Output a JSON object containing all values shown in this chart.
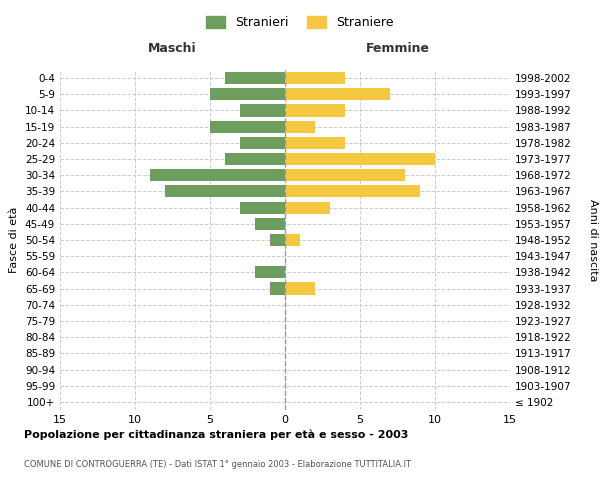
{
  "age_groups": [
    "100+",
    "95-99",
    "90-94",
    "85-89",
    "80-84",
    "75-79",
    "70-74",
    "65-69",
    "60-64",
    "55-59",
    "50-54",
    "45-49",
    "40-44",
    "35-39",
    "30-34",
    "25-29",
    "20-24",
    "15-19",
    "10-14",
    "5-9",
    "0-4"
  ],
  "birth_years": [
    "≤ 1902",
    "1903-1907",
    "1908-1912",
    "1913-1917",
    "1918-1922",
    "1923-1927",
    "1928-1932",
    "1933-1937",
    "1938-1942",
    "1943-1947",
    "1948-1952",
    "1953-1957",
    "1958-1962",
    "1963-1967",
    "1968-1972",
    "1973-1977",
    "1978-1982",
    "1983-1987",
    "1988-1992",
    "1993-1997",
    "1998-2002"
  ],
  "males": [
    0,
    0,
    0,
    0,
    0,
    0,
    0,
    1,
    2,
    0,
    1,
    2,
    3,
    8,
    9,
    4,
    3,
    5,
    3,
    5,
    4
  ],
  "females": [
    0,
    0,
    0,
    0,
    0,
    0,
    0,
    2,
    0,
    0,
    1,
    0,
    3,
    9,
    8,
    10,
    4,
    2,
    4,
    7,
    4
  ],
  "male_color": "#6d9e5e",
  "female_color": "#f5c842",
  "background_color": "#ffffff",
  "grid_color": "#cccccc",
  "title": "Popolazione per cittadinanza straniera per età e sesso - 2003",
  "subtitle": "COMUNE DI CONTROGUERRA (TE) - Dati ISTAT 1° gennaio 2003 - Elaborazione TUTTITALIA.IT",
  "ylabel_left": "Fasce di età",
  "ylabel_right": "Anni di nascita",
  "header_left": "Maschi",
  "header_right": "Femmine",
  "legend_male": "Stranieri",
  "legend_female": "Straniere",
  "xlim": 15
}
